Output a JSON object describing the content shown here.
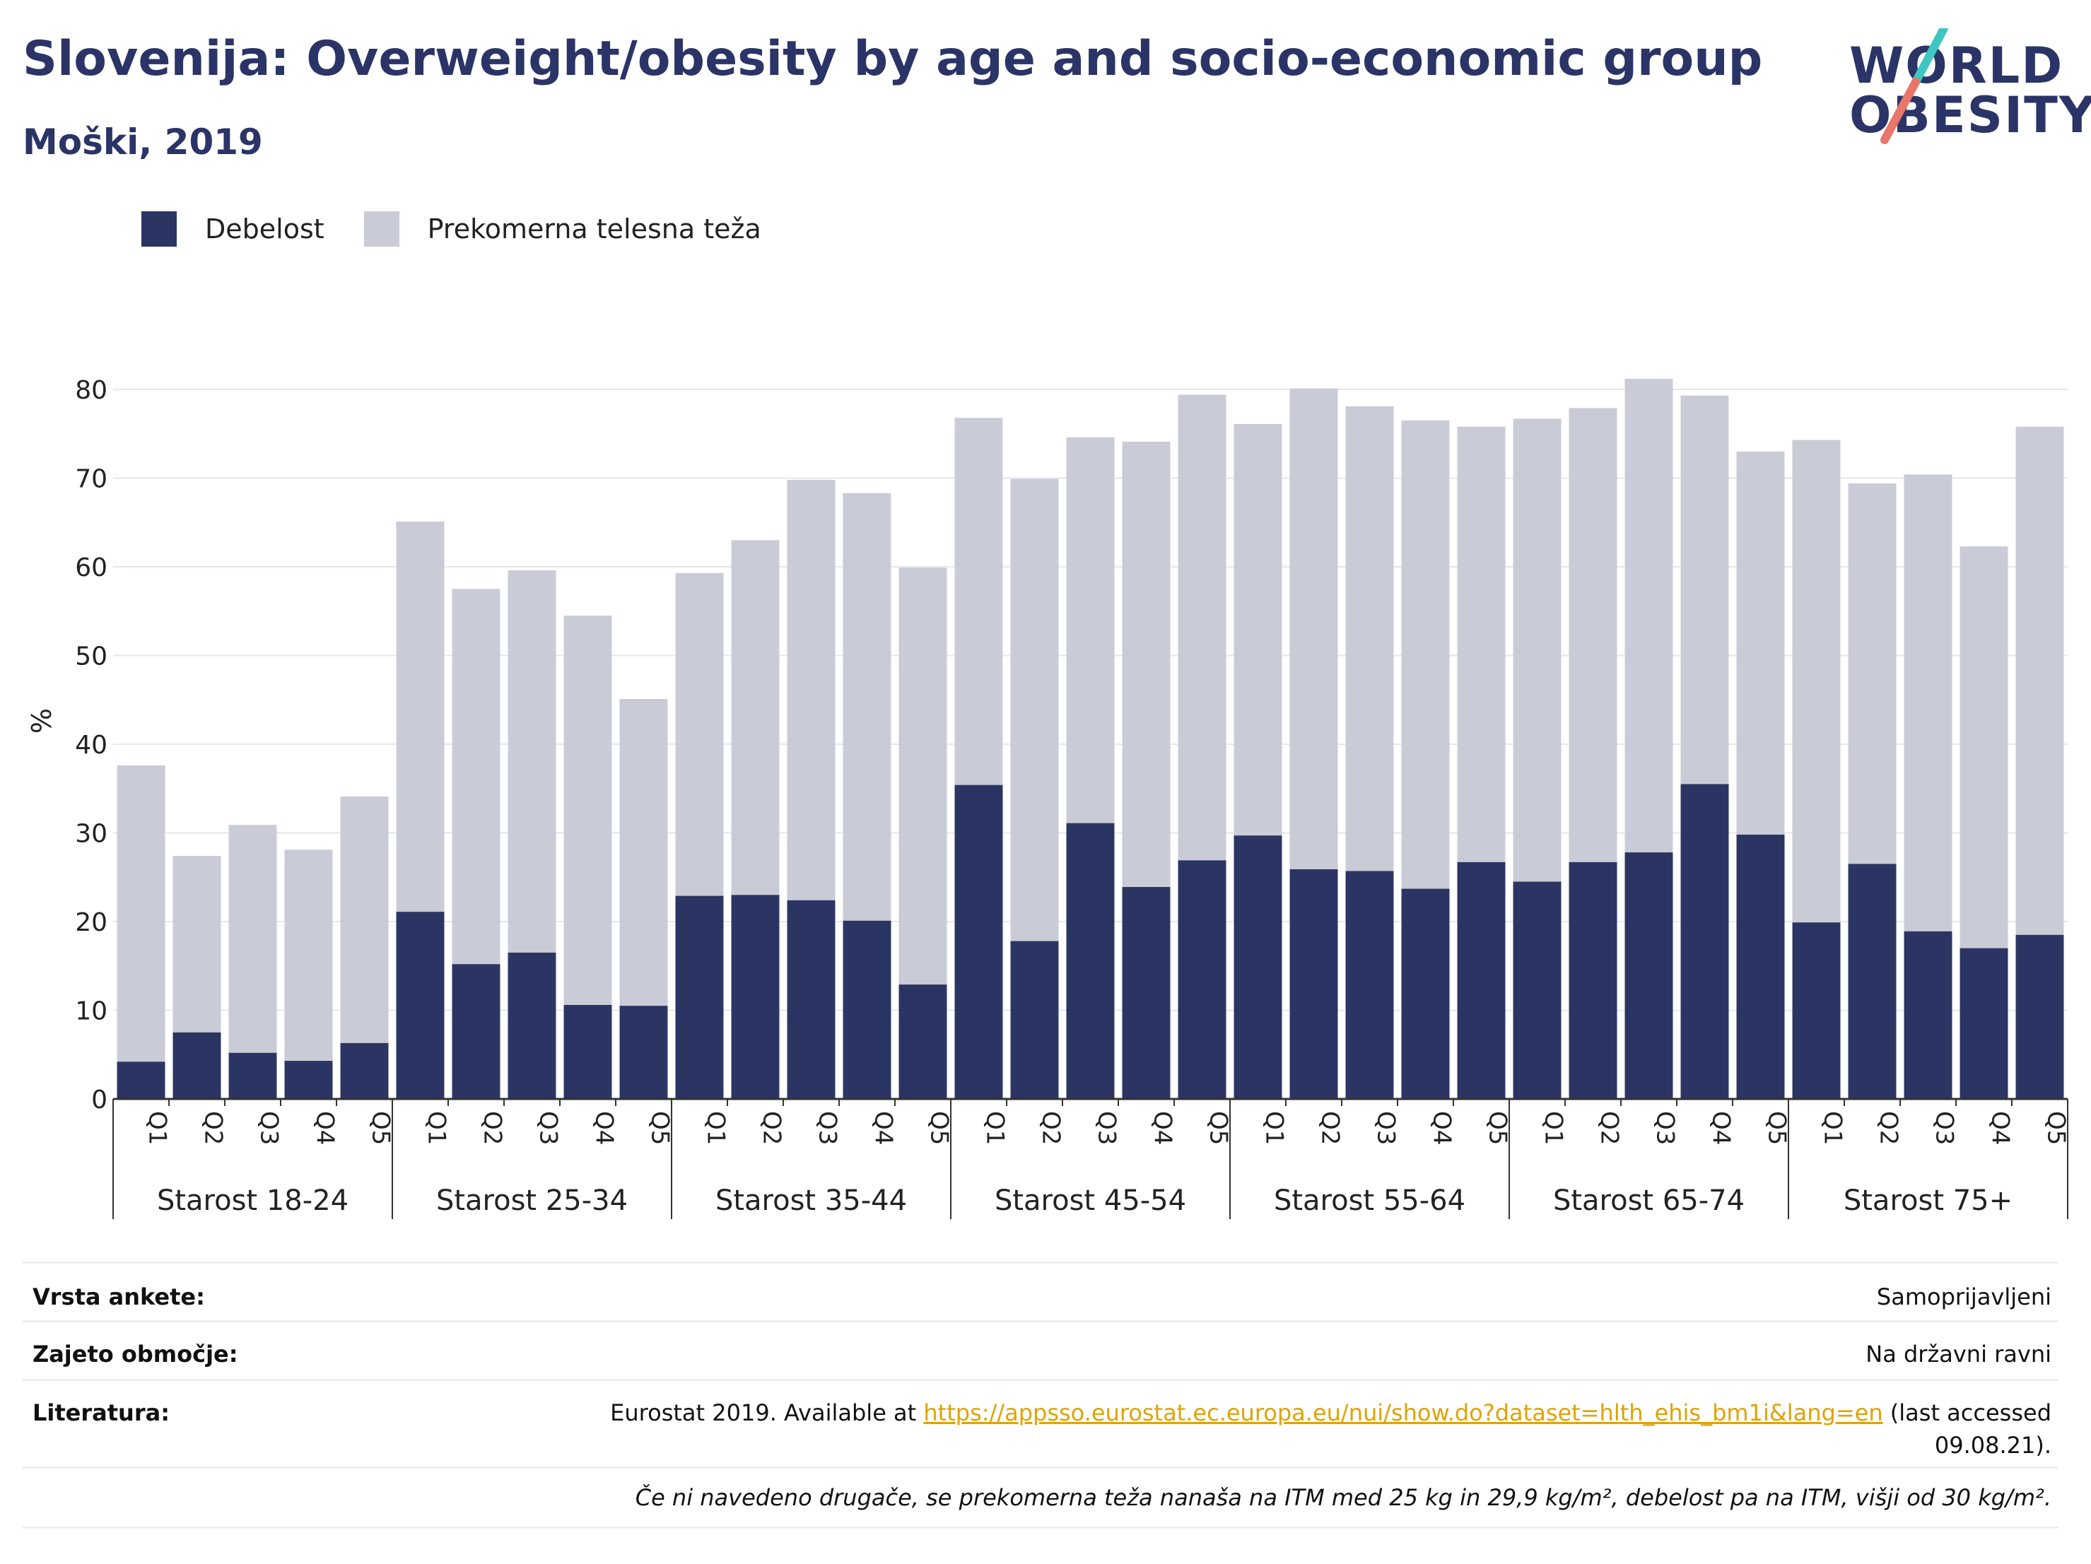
{
  "header": {
    "title": "Slovenija: Overweight/obesity by age and socio-economic group",
    "subtitle": "Moški, 2019"
  },
  "logo": {
    "line1": "WORLD",
    "line2": "OBESITY",
    "accent_colors": [
      "#3ec6c0",
      "#e8766a"
    ]
  },
  "colors": {
    "obesity": "#2b3563",
    "overweight": "#c9cbd6",
    "axis": "#333333",
    "grid": "#e6e7ec"
  },
  "chart_data": {
    "type": "bar",
    "stacked": true,
    "ylabel": "%",
    "ylim": [
      0,
      80
    ],
    "yticks": [
      0,
      10,
      20,
      30,
      40,
      50,
      60,
      70,
      80
    ],
    "grid": true,
    "legend_position": "top-left",
    "groups": [
      "Starost 18-24",
      "Starost 25-34",
      "Starost 35-44",
      "Starost 45-54",
      "Starost 55-64",
      "Starost 65-74",
      "Starost 75+"
    ],
    "categories": [
      "Q1",
      "Q2",
      "Q3",
      "Q4",
      "Q5"
    ],
    "series": [
      {
        "name": "Debelost",
        "values": [
          [
            4.2,
            7.5,
            5.2,
            4.3,
            6.3
          ],
          [
            21.1,
            15.2,
            16.5,
            10.6,
            10.5
          ],
          [
            22.9,
            23.0,
            22.4,
            20.1,
            12.9
          ],
          [
            35.4,
            17.8,
            31.1,
            23.9,
            26.9
          ],
          [
            29.7,
            25.9,
            25.7,
            23.7,
            26.7
          ],
          [
            24.5,
            26.7,
            27.8,
            35.5,
            29.8
          ],
          [
            19.9,
            26.5,
            18.9,
            17.0,
            18.5
          ]
        ]
      },
      {
        "name": "Prekomerna telesna teža",
        "totals_note": "cumulative height of stacked bar (overweight + obesity)",
        "values": [
          [
            37.6,
            27.4,
            30.9,
            28.1,
            34.1
          ],
          [
            65.1,
            57.5,
            59.6,
            54.5,
            45.1
          ],
          [
            59.3,
            63.0,
            69.8,
            68.3,
            59.9
          ],
          [
            76.8,
            69.9,
            74.6,
            74.1,
            79.4
          ],
          [
            76.1,
            80.1,
            78.1,
            76.5,
            75.8
          ],
          [
            76.7,
            77.9,
            81.2,
            79.3,
            73.0
          ],
          [
            74.3,
            69.4,
            70.4,
            62.3,
            75.8
          ]
        ]
      }
    ]
  },
  "legend": {
    "items": [
      {
        "label": "Debelost"
      },
      {
        "label": "Prekomerna telesna teža"
      }
    ]
  },
  "meta": {
    "survey_label": "Vrsta ankete:",
    "survey_value": "Samoprijavljeni",
    "coverage_label": "Zajeto območje:",
    "coverage_value": "Na državni ravni",
    "reference_label": "Literatura:",
    "reference_prefix": "Eurostat 2019. Available at ",
    "reference_link": "https://appsso.eurostat.ec.europa.eu/nui/show.do?dataset=hlth_ehis_bm1i&lang=en",
    "reference_suffix": " (last accessed",
    "reference_date": "09.08.21).",
    "footnote": "Če ni navedeno drugače, se prekomerna teža nanaša na ITM med 25 kg in 29,9 kg/m², debelost pa na ITM, višji od 30 kg/m²."
  }
}
